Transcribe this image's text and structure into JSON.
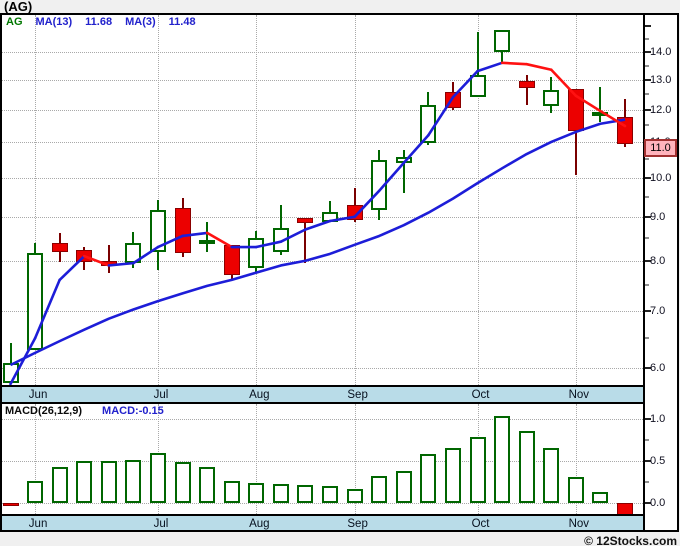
{
  "header": {
    "title": "(AG)"
  },
  "footer": {
    "watermark": "© 12Stocks.com"
  },
  "main_chart": {
    "legend": {
      "symbol": "AG",
      "ma13_label": "MA(13)",
      "ma13_value": "11.68",
      "ma3_label": "MA(3)",
      "ma3_value": "11.48"
    },
    "y_axis": {
      "tick_labels": [
        "14.0",
        "13.0",
        "12.0",
        "11.0",
        "10.0",
        "9.0",
        "8.0",
        "7.0",
        "6.0"
      ],
      "current_price_flag": "11.0"
    }
  },
  "macd_panel": {
    "label": "MACD(26,12,9)",
    "value_label": "MACD:-0.15",
    "y_axis": {
      "tick_labels": [
        "1.0",
        "0.5",
        "0.0"
      ]
    }
  },
  "colors": {
    "page_bg": "#F0F0F0",
    "plot_bg": "#FFFFFF",
    "frame": "#000000",
    "grid_dotted": "#A9A9A9",
    "month_band_bg": "#B9DCE8",
    "up_candle_border": "#006600",
    "down_candle_fill": "#EC0000",
    "down_candle_border": "#8B0000",
    "ma_line_blue": "#1D1DD8",
    "ma_line_red": "#FF1111",
    "legend_symbol_green": "#007700",
    "legend_text_blue": "#2222CC",
    "price_flag_bg": "#FFB3BC",
    "price_flag_border": "#A03030"
  },
  "chart_data": {
    "type": "candlestick",
    "title": "(AG) weekly price with MA(13), MA(3) and MACD(26,12,9)",
    "price_axis": {
      "scale": "log",
      "tick_step": 1.0,
      "labeled_ticks": [
        14.0,
        13.0,
        12.0,
        11.0,
        10.0,
        9.0,
        8.0,
        7.0,
        6.0
      ],
      "minor_tick_step": 0.5,
      "current_price": 11.0
    },
    "months": [
      {
        "label": "Jun",
        "candle_index": 1
      },
      {
        "label": "Jul",
        "candle_index": 6
      },
      {
        "label": "Aug",
        "candle_index": 10
      },
      {
        "label": "Sep",
        "candle_index": 14
      },
      {
        "label": "Oct",
        "candle_index": 19
      },
      {
        "label": "Nov",
        "candle_index": 23
      }
    ],
    "candles": [
      {
        "o": 5.77,
        "h": 6.42,
        "l": 5.77,
        "c": 6.08
      },
      {
        "o": 6.29,
        "h": 8.39,
        "l": 6.29,
        "c": 8.17
      },
      {
        "o": 8.39,
        "h": 8.62,
        "l": 7.97,
        "c": 8.19
      },
      {
        "o": 8.23,
        "h": 8.3,
        "l": 7.8,
        "c": 7.97
      },
      {
        "o": 7.99,
        "h": 8.34,
        "l": 7.74,
        "c": 7.89
      },
      {
        "o": 7.95,
        "h": 8.64,
        "l": 7.85,
        "c": 8.39
      },
      {
        "o": 8.19,
        "h": 9.42,
        "l": 7.8,
        "c": 9.17
      },
      {
        "o": 9.22,
        "h": 9.47,
        "l": 8.08,
        "c": 8.17
      },
      {
        "o": 8.4,
        "h": 8.88,
        "l": 8.19,
        "c": 8.46
      },
      {
        "o": 8.34,
        "h": 8.34,
        "l": 7.59,
        "c": 7.7
      },
      {
        "o": 7.85,
        "h": 8.67,
        "l": 7.76,
        "c": 8.5
      },
      {
        "o": 8.19,
        "h": 9.28,
        "l": 8.12,
        "c": 8.73
      },
      {
        "o": 8.98,
        "h": 8.98,
        "l": 7.95,
        "c": 8.85
      },
      {
        "o": 8.88,
        "h": 9.4,
        "l": 8.88,
        "c": 9.11
      },
      {
        "o": 9.28,
        "h": 9.72,
        "l": 8.88,
        "c": 8.93
      },
      {
        "o": 9.17,
        "h": 10.76,
        "l": 8.93,
        "c": 10.48
      },
      {
        "o": 10.4,
        "h": 10.76,
        "l": 9.59,
        "c": 10.56
      },
      {
        "o": 10.97,
        "h": 12.58,
        "l": 10.91,
        "c": 12.14
      },
      {
        "o": 12.58,
        "h": 12.92,
        "l": 11.98,
        "c": 12.05
      },
      {
        "o": 12.41,
        "h": 14.77,
        "l": 12.41,
        "c": 13.16
      },
      {
        "o": 14.0,
        "h": 14.85,
        "l": 13.59,
        "c": 14.85
      },
      {
        "o": 12.95,
        "h": 13.16,
        "l": 12.14,
        "c": 12.71
      },
      {
        "o": 12.11,
        "h": 13.09,
        "l": 11.89,
        "c": 12.64
      },
      {
        "o": 12.68,
        "h": 12.68,
        "l": 10.07,
        "c": 11.33
      },
      {
        "o": 11.86,
        "h": 12.75,
        "l": 11.6,
        "c": 11.92
      },
      {
        "o": 11.76,
        "h": 12.34,
        "l": 10.85,
        "c": 10.94
      }
    ],
    "overlays": [
      {
        "name": "MA(13)",
        "last_value": 11.68,
        "color_rule": "blue",
        "values": [
          6.05,
          6.25,
          6.45,
          6.65,
          6.85,
          7.02,
          7.18,
          7.33,
          7.48,
          7.6,
          7.75,
          7.9,
          8.0,
          8.15,
          8.35,
          8.55,
          8.8,
          9.1,
          9.45,
          9.85,
          10.25,
          10.65,
          11.0,
          11.3,
          11.55,
          11.68
        ]
      },
      {
        "name": "MA(3)",
        "last_value": 11.48,
        "color_rule": "blue_rising_red_falling",
        "values": [
          5.7,
          6.5,
          7.6,
          8.1,
          7.9,
          7.95,
          8.3,
          8.55,
          8.62,
          8.3,
          8.3,
          8.42,
          8.7,
          8.9,
          9.0,
          9.65,
          10.4,
          11.2,
          12.4,
          13.3,
          13.6,
          13.55,
          13.35,
          12.45,
          11.95,
          11.48
        ]
      }
    ],
    "indicator": {
      "name": "MACD(26,12,9)",
      "last_value": -0.15,
      "labeled_ticks": [
        1.0,
        0.5,
        0.0
      ],
      "values": [
        -0.03,
        0.26,
        0.43,
        0.5,
        0.5,
        0.51,
        0.6,
        0.49,
        0.43,
        0.26,
        0.24,
        0.23,
        0.21,
        0.2,
        0.17,
        0.32,
        0.38,
        0.58,
        0.65,
        0.79,
        1.04,
        0.86,
        0.65,
        0.31,
        0.13,
        -0.15
      ]
    }
  }
}
